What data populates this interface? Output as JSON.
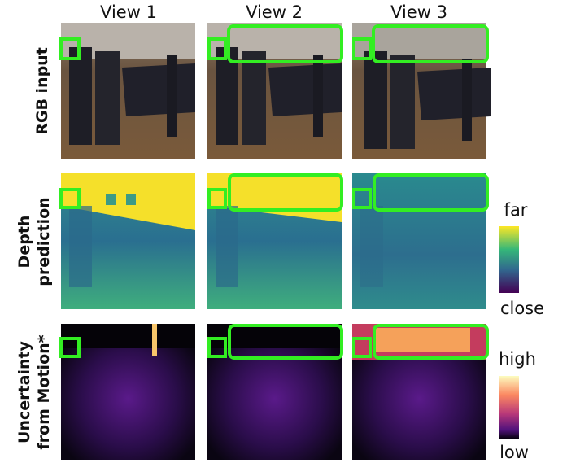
{
  "columns": [
    "View 1",
    "View 2",
    "View 3"
  ],
  "rows": [
    [
      "RGB input"
    ],
    [
      "Depth",
      "prediction"
    ],
    [
      "Uncertainty",
      "from Motion*"
    ]
  ],
  "colorbars": [
    {
      "top": "far",
      "bottom": "close"
    },
    {
      "top": "high",
      "bottom": "low"
    }
  ]
}
